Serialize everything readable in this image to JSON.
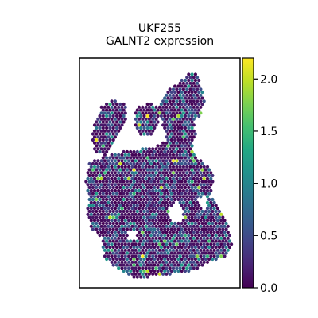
{
  "chart_data": {
    "type": "heatmap",
    "title": "UKF255",
    "subtitle": "GALNT2 expression",
    "colorbar": {
      "colormap": "viridis",
      "vmin": 0.0,
      "vmax": 2.2,
      "ticks": [
        0.0,
        0.5,
        1.0,
        1.5,
        2.0
      ],
      "tick_labels": [
        "0.0",
        "0.5",
        "1.0",
        "1.5",
        "2.0"
      ]
    },
    "grid": false,
    "background_spot_value": 0.05,
    "value_distribution": "mostly near 0, scattered spots 0.5-1.2, few up to ~2.2"
  },
  "colors": {
    "viridis_low": "#440154",
    "viridis_mid": "#21918c",
    "viridis_high": "#fde725",
    "axes_frame": "#000000"
  }
}
